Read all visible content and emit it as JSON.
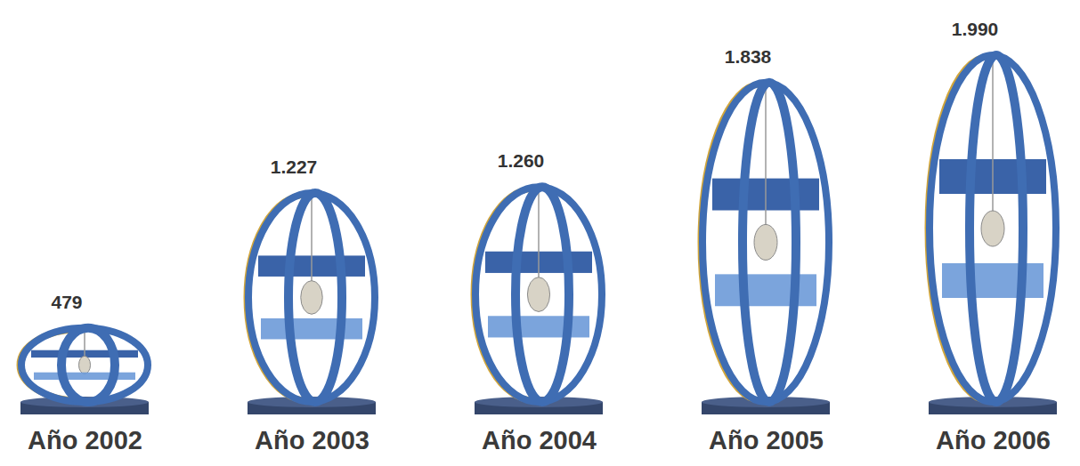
{
  "chart_data": {
    "type": "bar",
    "categories": [
      "Año 2002",
      "Año 2003",
      "Año 2004",
      "Año 2005",
      "Año 2006"
    ],
    "values": [
      479,
      1227,
      1260,
      1838,
      1990
    ],
    "value_labels": [
      "479",
      "1.227",
      "1.260",
      "1.838",
      "1.990"
    ],
    "data_labels": true,
    "tick_labels": "x",
    "color": "#3f6db3"
  }
}
